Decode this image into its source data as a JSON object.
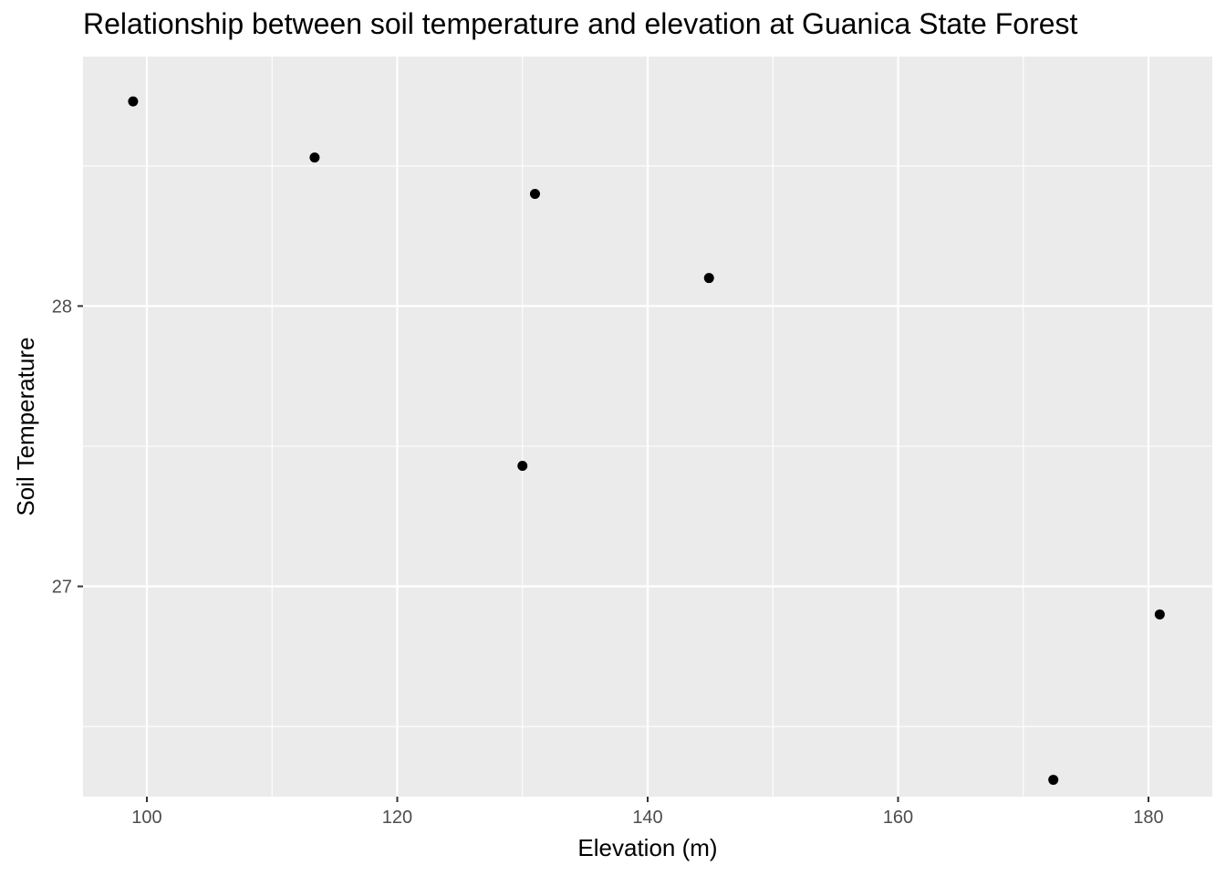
{
  "chart_data": {
    "type": "scatter",
    "title": "Relationship between soil temperature and elevation at Guanica State Forest",
    "xlabel": "Elevation (m)",
    "ylabel": "Soil Temperature",
    "xlim": [
      94.9,
      185.1
    ],
    "ylim": [
      26.25,
      28.89
    ],
    "x_ticks": [
      100,
      120,
      140,
      160,
      180
    ],
    "x_tick_labels": [
      "100",
      "120",
      "140",
      "160",
      "180"
    ],
    "y_ticks": [
      27,
      28
    ],
    "y_tick_labels": [
      "27",
      "28"
    ],
    "grid": true,
    "legend": "none",
    "points": [
      {
        "x": 98.9,
        "y": 28.73
      },
      {
        "x": 113.4,
        "y": 28.53
      },
      {
        "x": 131.0,
        "y": 28.4
      },
      {
        "x": 130.0,
        "y": 27.43
      },
      {
        "x": 144.9,
        "y": 28.1
      },
      {
        "x": 172.4,
        "y": 26.31
      },
      {
        "x": 180.9,
        "y": 26.9
      }
    ],
    "colors": {
      "panel": "#ebebeb",
      "grid": "#ffffff",
      "point": "#000000",
      "tick": "#333333"
    }
  }
}
